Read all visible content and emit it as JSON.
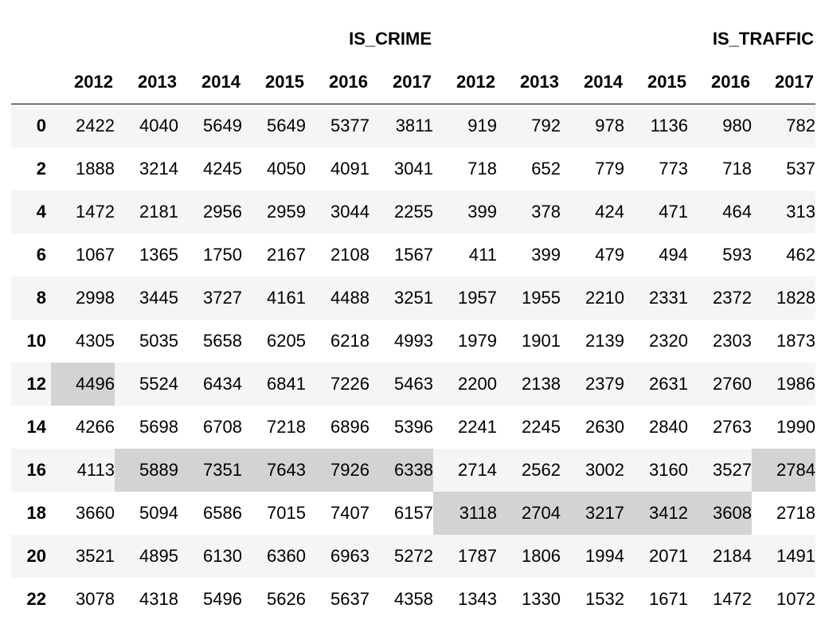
{
  "chart_data": {
    "type": "table",
    "column_groups": [
      "IS_CRIME",
      "IS_TRAFFIC"
    ],
    "years": [
      "2012",
      "2013",
      "2014",
      "2015",
      "2016",
      "2017"
    ],
    "index": [
      "0",
      "2",
      "4",
      "6",
      "8",
      "10",
      "12",
      "14",
      "16",
      "18",
      "20",
      "22"
    ],
    "rows": [
      [
        "2422",
        "4040",
        "5649",
        "5649",
        "5377",
        "3811",
        "919",
        "792",
        "978",
        "1136",
        "980",
        "782"
      ],
      [
        "1888",
        "3214",
        "4245",
        "4050",
        "4091",
        "3041",
        "718",
        "652",
        "779",
        "773",
        "718",
        "537"
      ],
      [
        "1472",
        "2181",
        "2956",
        "2959",
        "3044",
        "2255",
        "399",
        "378",
        "424",
        "471",
        "464",
        "313"
      ],
      [
        "1067",
        "1365",
        "1750",
        "2167",
        "2108",
        "1567",
        "411",
        "399",
        "479",
        "494",
        "593",
        "462"
      ],
      [
        "2998",
        "3445",
        "3727",
        "4161",
        "4488",
        "3251",
        "1957",
        "1955",
        "2210",
        "2331",
        "2372",
        "1828"
      ],
      [
        "4305",
        "5035",
        "5658",
        "6205",
        "6218",
        "4993",
        "1979",
        "1901",
        "2139",
        "2320",
        "2303",
        "1873"
      ],
      [
        "4496",
        "5524",
        "6434",
        "6841",
        "7226",
        "5463",
        "2200",
        "2138",
        "2379",
        "2631",
        "2760",
        "1986"
      ],
      [
        "4266",
        "5698",
        "6708",
        "7218",
        "6896",
        "5396",
        "2241",
        "2245",
        "2630",
        "2840",
        "2763",
        "1990"
      ],
      [
        "4113",
        "5889",
        "7351",
        "7643",
        "7926",
        "6338",
        "2714",
        "2562",
        "3002",
        "3160",
        "3527",
        "2784"
      ],
      [
        "3660",
        "5094",
        "6586",
        "7015",
        "7407",
        "6157",
        "3118",
        "2704",
        "3217",
        "3412",
        "3608",
        "2718"
      ],
      [
        "3521",
        "4895",
        "6130",
        "6360",
        "6963",
        "5272",
        "1787",
        "1806",
        "1994",
        "2071",
        "2184",
        "1491"
      ],
      [
        "3078",
        "4318",
        "5496",
        "5626",
        "5637",
        "4358",
        "1343",
        "1330",
        "1532",
        "1671",
        "1472",
        "1072"
      ]
    ],
    "highlight_color": "#d3d3d3",
    "highlighted_cells": [
      [
        6,
        0
      ],
      [
        8,
        1
      ],
      [
        8,
        2
      ],
      [
        8,
        3
      ],
      [
        8,
        4
      ],
      [
        8,
        5
      ],
      [
        8,
        11
      ],
      [
        9,
        6
      ],
      [
        9,
        7
      ],
      [
        9,
        8
      ],
      [
        9,
        9
      ],
      [
        9,
        10
      ]
    ]
  }
}
